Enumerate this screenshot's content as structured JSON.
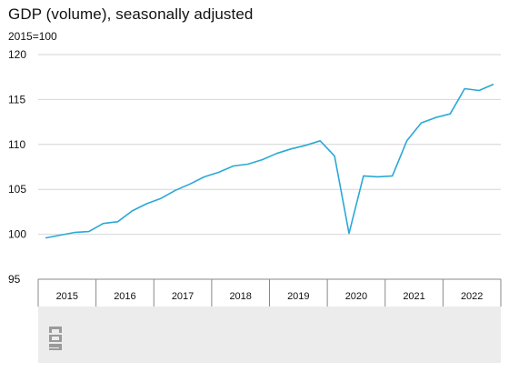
{
  "chart_data": {
    "type": "line",
    "title": "GDP (volume), seasonally adjusted",
    "subtitle": "2015=100",
    "ylim": [
      95,
      120
    ],
    "yticks": [
      95,
      100,
      105,
      110,
      115,
      120
    ],
    "x_range": [
      2015.0,
      2023.0
    ],
    "x_categories": [
      "2015",
      "2016",
      "2017",
      "2018",
      "2019",
      "2020",
      "2021",
      "2022"
    ],
    "grid": true,
    "series": [
      {
        "color": "#2aa8d6",
        "x": [
          "2015 Q1",
          "2015 Q2",
          "2015 Q3",
          "2015 Q4",
          "2016 Q1",
          "2016 Q2",
          "2016 Q3",
          "2016 Q4",
          "2017 Q1",
          "2017 Q2",
          "2017 Q3",
          "2017 Q4",
          "2018 Q1",
          "2018 Q2",
          "2018 Q3",
          "2018 Q4",
          "2019 Q1",
          "2019 Q2",
          "2019 Q3",
          "2019 Q4",
          "2020 Q1",
          "2020 Q2",
          "2020 Q3",
          "2020 Q4",
          "2021 Q1",
          "2021 Q2",
          "2021 Q3",
          "2021 Q4",
          "2022 Q1",
          "2022 Q2",
          "2022 Q3",
          "2022 Q4"
        ],
        "values": [
          99.6,
          99.9,
          100.2,
          100.3,
          101.2,
          101.4,
          102.6,
          103.4,
          104.0,
          104.9,
          105.6,
          106.4,
          106.9,
          107.6,
          107.8,
          108.3,
          109.0,
          109.5,
          109.9,
          110.4,
          108.7,
          100.1,
          106.5,
          106.4,
          106.5,
          110.4,
          112.4,
          113.0,
          113.4,
          116.2,
          116.0,
          116.7
        ]
      }
    ]
  },
  "brand": {
    "logo_name": "cbs-logo"
  }
}
